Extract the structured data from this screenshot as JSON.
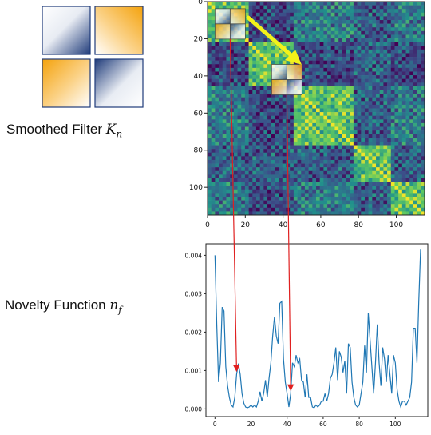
{
  "labels": {
    "filter_text": "Smoothed Filter ",
    "filter_symbol": "K",
    "filter_sub": "n",
    "novelty_text": "Novelty Function ",
    "novelty_symbol": "n",
    "novelty_sub": "f"
  },
  "colors": {
    "navy": "#1f3b7a",
    "orange": "#f4a20c",
    "arrow_yellow": "#f2f21a",
    "arrow_red": "#e02020",
    "line_blue": "#1f77b4"
  },
  "icons": [
    "smoothed-filter-icon",
    "small-filter-glyph"
  ],
  "chart_data": [
    {
      "type": "heatmap",
      "title": "",
      "xlabel": "",
      "ylabel": "",
      "size": 115,
      "xlim": [
        0,
        115
      ],
      "ylim": [
        115,
        0
      ],
      "x_ticks": [
        "0",
        "20",
        "40",
        "60",
        "80",
        "100"
      ],
      "y_ticks": [
        "0",
        "20",
        "40",
        "60",
        "80",
        "100"
      ],
      "colormap": "viridis",
      "filter_positions": [
        12,
        42
      ]
    },
    {
      "type": "line",
      "title": "",
      "xlabel": "",
      "ylabel": "",
      "xlim": [
        -5,
        118
      ],
      "ylim": [
        -0.0002,
        0.0043
      ],
      "x_ticks": [
        "0",
        "20",
        "40",
        "60",
        "80",
        "100"
      ],
      "y_ticks": [
        "0.000",
        "0.001",
        "0.002",
        "0.003",
        "0.004"
      ],
      "arrow_targets": [
        12,
        42
      ],
      "series": [
        {
          "values": [
            0.004,
            0.0022,
            0.0007,
            0.0012,
            0.00265,
            0.00255,
            0.0011,
            0.0006,
            0.0003,
            0.0001,
            5e-05,
            0.0003,
            0.0009,
            0.00118,
            0.0009,
            0.0004,
            0.00015,
            5e-05,
            3e-05,
            5e-05,
            0.0001,
            5e-05,
            0.0001,
            5e-05,
            0.0002,
            0.00045,
            0.0002,
            0.0004,
            0.00075,
            0.0003,
            0.0008,
            0.0012,
            0.0019,
            0.0024,
            0.0019,
            0.0017,
            0.00275,
            0.0028,
            0.0013,
            0.0007,
            0.0004,
            5e-05,
            0.0004,
            0.0012,
            0.0011,
            0.0014,
            0.0012,
            0.0013,
            0.00075,
            0.0007,
            0.0003,
            0.0009,
            0.0003,
            0.0003,
            5e-05,
            3e-05,
            0.0001,
            5e-05,
            0.0001,
            0.0002,
            0.0002,
            0.0004,
            0.0002,
            0.0004,
            0.0008,
            0.0009,
            0.0012,
            0.0016,
            0.00075,
            0.0015,
            0.00135,
            0.00095,
            0.00125,
            0.0004,
            0.0017,
            0.0016,
            0.0007,
            0.0003,
            0.0001,
            5e-05,
            0.0001,
            0.0004,
            0.0007,
            0.00165,
            0.00095,
            0.0025,
            0.0018,
            0.0011,
            0.0004,
            0.0012,
            0.0022,
            0.0012,
            0.0006,
            0.0016,
            0.0013,
            0.0007,
            0.0014,
            0.0009,
            0.0004,
            0.0014,
            0.0012,
            0.0005,
            0.0002,
            5e-05,
            0.0002,
            0.0002,
            0.0001,
            0.0002,
            0.0003,
            0.0007,
            0.0021,
            0.0021,
            0.0012,
            0.0028,
            0.00415
          ]
        }
      ]
    }
  ]
}
